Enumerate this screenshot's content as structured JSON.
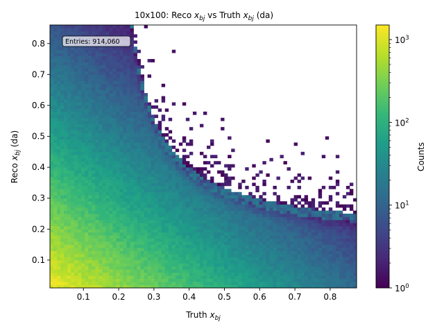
{
  "chart_data": {
    "type": "heatmap",
    "title": "10x100: Reco x_bj vs Truth x_bj (da)",
    "title_parts": {
      "pre": "10x100: Reco ",
      "mid": " vs Truth ",
      "post": " (da)"
    },
    "xlabel_main": "Truth ",
    "ylabel_main": "Reco ",
    "ylabel_suffix": " (da)",
    "x_symbol": "x",
    "x_subscript": "bj",
    "xlim": [
      0.005,
      0.875
    ],
    "ylim": [
      0.01,
      0.86
    ],
    "xticks": [
      "0.1",
      "0.2",
      "0.3",
      "0.4",
      "0.5",
      "0.6",
      "0.7",
      "0.8"
    ],
    "xtick_values": [
      0.1,
      0.2,
      0.3,
      0.4,
      0.5,
      0.6,
      0.7,
      0.8
    ],
    "yticks": [
      "0.1",
      "0.2",
      "0.3",
      "0.4",
      "0.5",
      "0.6",
      "0.7",
      "0.8"
    ],
    "ytick_values": [
      0.1,
      0.2,
      0.3,
      0.4,
      0.5,
      0.6,
      0.7,
      0.8
    ],
    "colorbar": {
      "label": "Counts",
      "scale": "log",
      "range": [
        1,
        1500
      ],
      "colormap": "viridis",
      "tick_base": "10",
      "tick_exponents": [
        "0",
        "1",
        "2",
        "3"
      ],
      "tick_values": [
        1,
        10,
        100,
        1000
      ]
    },
    "annotation": "Entries: 914,060",
    "annotation_position": "top-left",
    "grid": false,
    "nbins": [
      88,
      85
    ],
    "density_peak": 1500,
    "kinematic_boundary": "Reco x_bj ≈ 0.054 / (Truth x_bj - 0.16) + 0.155",
    "colors": {
      "empty": "#ffffff",
      "viridis": [
        "#440154",
        "#482878",
        "#3e4989",
        "#31688e",
        "#26828e",
        "#1f9e89",
        "#35b779",
        "#6ece58",
        "#b5de2b",
        "#fde725"
      ]
    }
  }
}
